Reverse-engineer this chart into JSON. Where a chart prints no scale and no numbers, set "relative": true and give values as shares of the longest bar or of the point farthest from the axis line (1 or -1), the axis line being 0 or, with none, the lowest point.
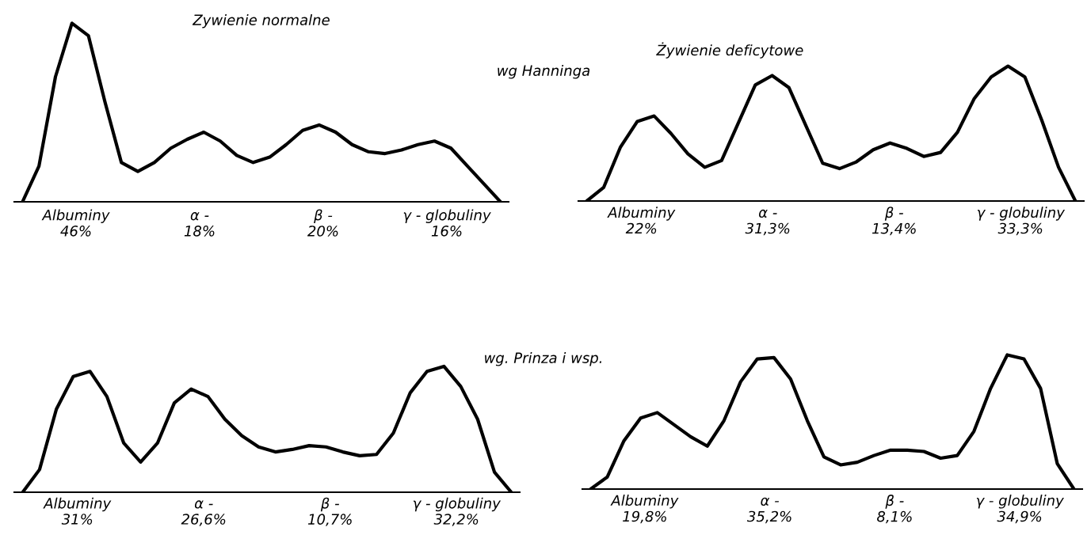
{
  "chart_data": [
    {
      "type": "line",
      "relative": true,
      "title": "Zywienie normalne",
      "subtitle": "wg Hanninga",
      "color": "#000000",
      "categories": [
        null,
        null,
        null,
        null,
        null,
        null,
        null,
        null,
        null,
        null,
        null,
        null,
        null,
        null,
        null,
        null,
        null,
        null,
        null,
        null,
        null,
        null,
        null,
        null,
        null,
        null,
        null,
        null,
        null,
        null
      ],
      "values": [
        0,
        0.2,
        0.7,
        1.0,
        0.93,
        0.56,
        0.22,
        0.17,
        0.22,
        0.3,
        0.35,
        0.39,
        0.34,
        0.26,
        0.22,
        0.25,
        0.32,
        0.4,
        0.43,
        0.39,
        0.32,
        0.28,
        0.27,
        0.29,
        0.32,
        0.34,
        0.3,
        0.2,
        0.1,
        0
      ],
      "annotations": [
        "Albuminy\n46%",
        "α -\n18%",
        "β -\n20%",
        "γ - globuliny\n16%"
      ]
    },
    {
      "type": "line",
      "relative": true,
      "title": "Żywienie deficytowe",
      "color": "#000000",
      "categories": [
        null,
        null,
        null,
        null,
        null,
        null,
        null,
        null,
        null,
        null,
        null,
        null,
        null,
        null,
        null,
        null,
        null,
        null,
        null,
        null,
        null,
        null,
        null,
        null,
        null,
        null,
        null,
        null,
        null,
        null
      ],
      "values": [
        0,
        0.1,
        0.4,
        0.59,
        0.63,
        0.5,
        0.35,
        0.25,
        0.3,
        0.58,
        0.86,
        0.93,
        0.84,
        0.56,
        0.28,
        0.24,
        0.29,
        0.38,
        0.43,
        0.39,
        0.33,
        0.36,
        0.51,
        0.76,
        0.92,
        1.0,
        0.92,
        0.6,
        0.25,
        0
      ],
      "annotations": [
        "Albuminy\n22%",
        "α -\n31,3%",
        "β -\n13,4%",
        "γ - globuliny\n33,3%"
      ]
    },
    {
      "type": "line",
      "relative": true,
      "subtitle": "wg. Prinza i wsp.",
      "color": "#000000",
      "categories": [
        null,
        null,
        null,
        null,
        null,
        null,
        null,
        null,
        null,
        null,
        null,
        null,
        null,
        null,
        null,
        null,
        null,
        null,
        null,
        null,
        null,
        null,
        null,
        null,
        null,
        null,
        null,
        null,
        null,
        null
      ],
      "values": [
        0,
        0.18,
        0.66,
        0.92,
        0.96,
        0.76,
        0.39,
        0.24,
        0.39,
        0.71,
        0.82,
        0.76,
        0.58,
        0.45,
        0.36,
        0.32,
        0.34,
        0.37,
        0.36,
        0.32,
        0.29,
        0.3,
        0.47,
        0.79,
        0.96,
        1.0,
        0.84,
        0.58,
        0.16,
        0
      ],
      "annotations": [
        "Albuminy\n31%",
        "α -\n26,6%",
        "β -\n10,7%",
        "γ - globuliny\n32,2%"
      ]
    },
    {
      "type": "line",
      "relative": true,
      "color": "#000000",
      "categories": [
        null,
        null,
        null,
        null,
        null,
        null,
        null,
        null,
        null,
        null,
        null,
        null,
        null,
        null,
        null,
        null,
        null,
        null,
        null,
        null,
        null,
        null,
        null,
        null,
        null,
        null,
        null,
        null,
        null,
        null
      ],
      "values": [
        0,
        0.09,
        0.36,
        0.53,
        0.57,
        0.48,
        0.39,
        0.32,
        0.51,
        0.8,
        0.97,
        0.98,
        0.82,
        0.51,
        0.24,
        0.18,
        0.2,
        0.25,
        0.29,
        0.29,
        0.28,
        0.23,
        0.25,
        0.43,
        0.75,
        1.0,
        0.97,
        0.75,
        0.19,
        0
      ],
      "annotations": [
        "Albuminy\n19,8%",
        "α -\n35,2%",
        "β -\n8,1%",
        "γ - globuliny\n34,9%"
      ]
    }
  ]
}
